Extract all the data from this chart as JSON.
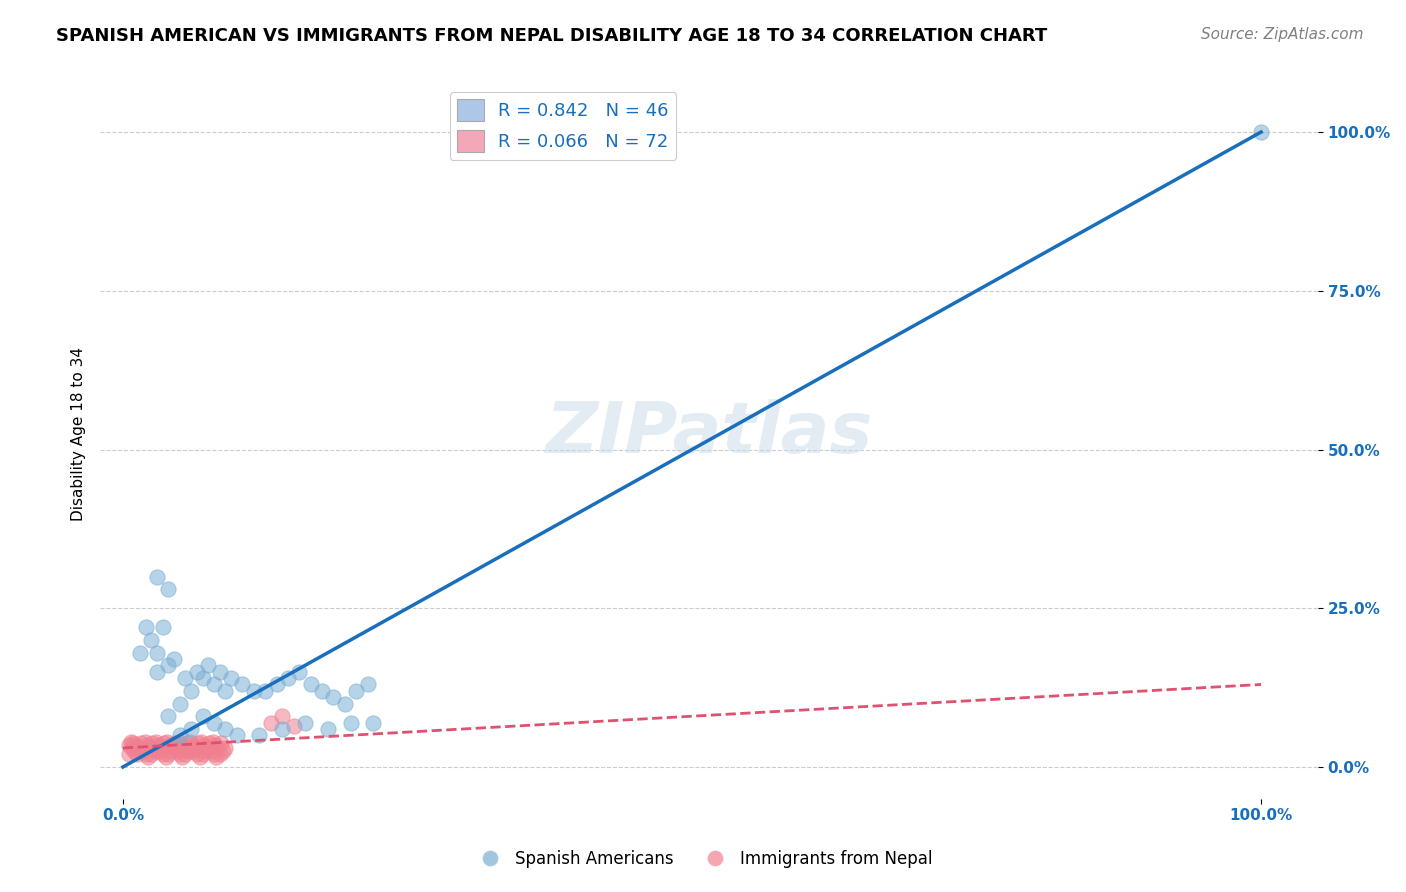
{
  "title": "SPANISH AMERICAN VS IMMIGRANTS FROM NEPAL DISABILITY AGE 18 TO 34 CORRELATION CHART",
  "source": "Source: ZipAtlas.com",
  "xlabel_ticks": [
    "0.0%",
    "100.0%"
  ],
  "ylabel": "Disability Age 18 to 34",
  "ytick_labels": [
    "0.0%",
    "25.0%",
    "50.0%",
    "75.0%",
    "100.0%"
  ],
  "ytick_values": [
    0,
    0.25,
    0.5,
    0.75,
    1.0
  ],
  "xlim": [
    -0.02,
    1.05
  ],
  "ylim": [
    -0.05,
    1.1
  ],
  "watermark": "ZIPatlas",
  "legend_line1": "R = 0.842   N = 46",
  "legend_line2": "R = 0.066   N = 72",
  "legend_color1": "#aec6e8",
  "legend_color2": "#f4a7b9",
  "scatter_blue_color": "#7bafd4",
  "scatter_pink_color": "#f08090",
  "trend_blue_color": "#1a6fbd",
  "trend_pink_color": "#e05070",
  "trend_pink_dash": true,
  "blue_scatter_x": [
    0.02,
    0.03,
    0.015,
    0.025,
    0.035,
    0.04,
    0.05,
    0.06,
    0.07,
    0.08,
    0.09,
    0.1,
    0.12,
    0.14,
    0.16,
    0.18,
    0.2,
    0.22,
    0.03,
    0.04,
    0.05,
    0.06,
    0.07,
    0.08,
    0.09,
    0.03,
    0.04,
    0.045,
    0.055,
    0.065,
    0.075,
    0.085,
    0.095,
    0.105,
    0.115,
    0.125,
    0.135,
    0.145,
    0.155,
    0.165,
    0.175,
    0.185,
    0.195,
    0.205,
    0.215,
    1.0
  ],
  "blue_scatter_y": [
    0.22,
    0.18,
    0.18,
    0.2,
    0.22,
    0.08,
    0.05,
    0.06,
    0.08,
    0.07,
    0.06,
    0.05,
    0.05,
    0.06,
    0.07,
    0.06,
    0.07,
    0.07,
    0.3,
    0.28,
    0.1,
    0.12,
    0.14,
    0.13,
    0.12,
    0.15,
    0.16,
    0.17,
    0.14,
    0.15,
    0.16,
    0.15,
    0.14,
    0.13,
    0.12,
    0.12,
    0.13,
    0.14,
    0.15,
    0.13,
    0.12,
    0.11,
    0.1,
    0.12,
    0.13,
    1.0
  ],
  "pink_scatter_x": [
    0.005,
    0.008,
    0.01,
    0.012,
    0.015,
    0.018,
    0.02,
    0.022,
    0.025,
    0.028,
    0.03,
    0.032,
    0.035,
    0.038,
    0.04,
    0.042,
    0.045,
    0.048,
    0.05,
    0.052,
    0.055,
    0.058,
    0.06,
    0.062,
    0.065,
    0.068,
    0.07,
    0.072,
    0.075,
    0.078,
    0.08,
    0.082,
    0.085,
    0.088,
    0.09,
    0.005,
    0.007,
    0.009,
    0.011,
    0.013,
    0.016,
    0.019,
    0.021,
    0.023,
    0.026,
    0.029,
    0.031,
    0.033,
    0.036,
    0.039,
    0.041,
    0.043,
    0.046,
    0.049,
    0.051,
    0.053,
    0.056,
    0.059,
    0.061,
    0.063,
    0.066,
    0.069,
    0.071,
    0.073,
    0.076,
    0.079,
    0.081,
    0.083,
    0.086,
    0.13,
    0.15,
    0.14
  ],
  "pink_scatter_y": [
    0.02,
    0.03,
    0.025,
    0.02,
    0.03,
    0.025,
    0.02,
    0.015,
    0.02,
    0.025,
    0.03,
    0.025,
    0.02,
    0.015,
    0.02,
    0.025,
    0.03,
    0.025,
    0.02,
    0.015,
    0.02,
    0.025,
    0.03,
    0.025,
    0.02,
    0.015,
    0.02,
    0.025,
    0.03,
    0.025,
    0.02,
    0.015,
    0.02,
    0.025,
    0.03,
    0.035,
    0.04,
    0.038,
    0.035,
    0.032,
    0.038,
    0.04,
    0.035,
    0.032,
    0.038,
    0.04,
    0.035,
    0.032,
    0.038,
    0.04,
    0.035,
    0.032,
    0.038,
    0.04,
    0.035,
    0.032,
    0.038,
    0.04,
    0.035,
    0.032,
    0.038,
    0.04,
    0.035,
    0.032,
    0.038,
    0.04,
    0.035,
    0.032,
    0.038,
    0.07,
    0.065,
    0.08
  ],
  "blue_trend_x": [
    0.0,
    1.0
  ],
  "blue_trend_y": [
    0.0,
    1.0
  ],
  "pink_trend_x": [
    0.0,
    1.0
  ],
  "pink_trend_y": [
    0.03,
    0.13
  ],
  "grid_color": "#cccccc",
  "background_color": "#ffffff",
  "title_fontsize": 13,
  "axis_label_fontsize": 11,
  "tick_fontsize": 11,
  "legend_fontsize": 13,
  "source_fontsize": 11
}
